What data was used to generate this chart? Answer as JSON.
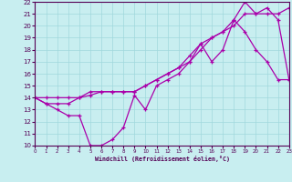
{
  "xlabel": "Windchill (Refroidissement éolien,°C)",
  "xlim": [
    0,
    23
  ],
  "ylim": [
    10,
    22
  ],
  "xticks": [
    0,
    1,
    2,
    3,
    4,
    5,
    6,
    7,
    8,
    9,
    10,
    11,
    12,
    13,
    14,
    15,
    16,
    17,
    18,
    19,
    20,
    21,
    22,
    23
  ],
  "yticks": [
    10,
    11,
    12,
    13,
    14,
    15,
    16,
    17,
    18,
    19,
    20,
    21,
    22
  ],
  "background_color": "#c8eef0",
  "grid_color": "#a0d8dc",
  "line_color": "#aa00aa",
  "line1_x": [
    0,
    1,
    2,
    3,
    4,
    5,
    6,
    7,
    8,
    9,
    10,
    11,
    12,
    13,
    14,
    15,
    16,
    17,
    18,
    19,
    20,
    21,
    22,
    23
  ],
  "line1_y": [
    14,
    13.5,
    13,
    12.5,
    12.5,
    10,
    10,
    10.5,
    11.5,
    14.2,
    13,
    15,
    15.5,
    16,
    17,
    18.5,
    17,
    18,
    20.5,
    19.5,
    18,
    17,
    15.5,
    15.5
  ],
  "line2_x": [
    0,
    1,
    2,
    3,
    4,
    5,
    6,
    7,
    8,
    9,
    10,
    11,
    12,
    13,
    14,
    15,
    16,
    17,
    18,
    19,
    20,
    21,
    22,
    23
  ],
  "line2_y": [
    14,
    13.5,
    13.5,
    13.5,
    14,
    14.2,
    14.5,
    14.5,
    14.5,
    14.5,
    15,
    15.5,
    16,
    16.5,
    17.5,
    18.5,
    19,
    19.5,
    20,
    21,
    21,
    21,
    21,
    21.5
  ],
  "line3_x": [
    0,
    1,
    2,
    3,
    4,
    5,
    6,
    7,
    8,
    9,
    10,
    11,
    12,
    13,
    14,
    15,
    16,
    17,
    18,
    19,
    20,
    21,
    22,
    23
  ],
  "line3_y": [
    14,
    14,
    14,
    14,
    14,
    14.5,
    14.5,
    14.5,
    14.5,
    14.5,
    15,
    15.5,
    16,
    16.5,
    17,
    18,
    19,
    19.5,
    20.5,
    22,
    21,
    21.5,
    20.5,
    15.5
  ]
}
